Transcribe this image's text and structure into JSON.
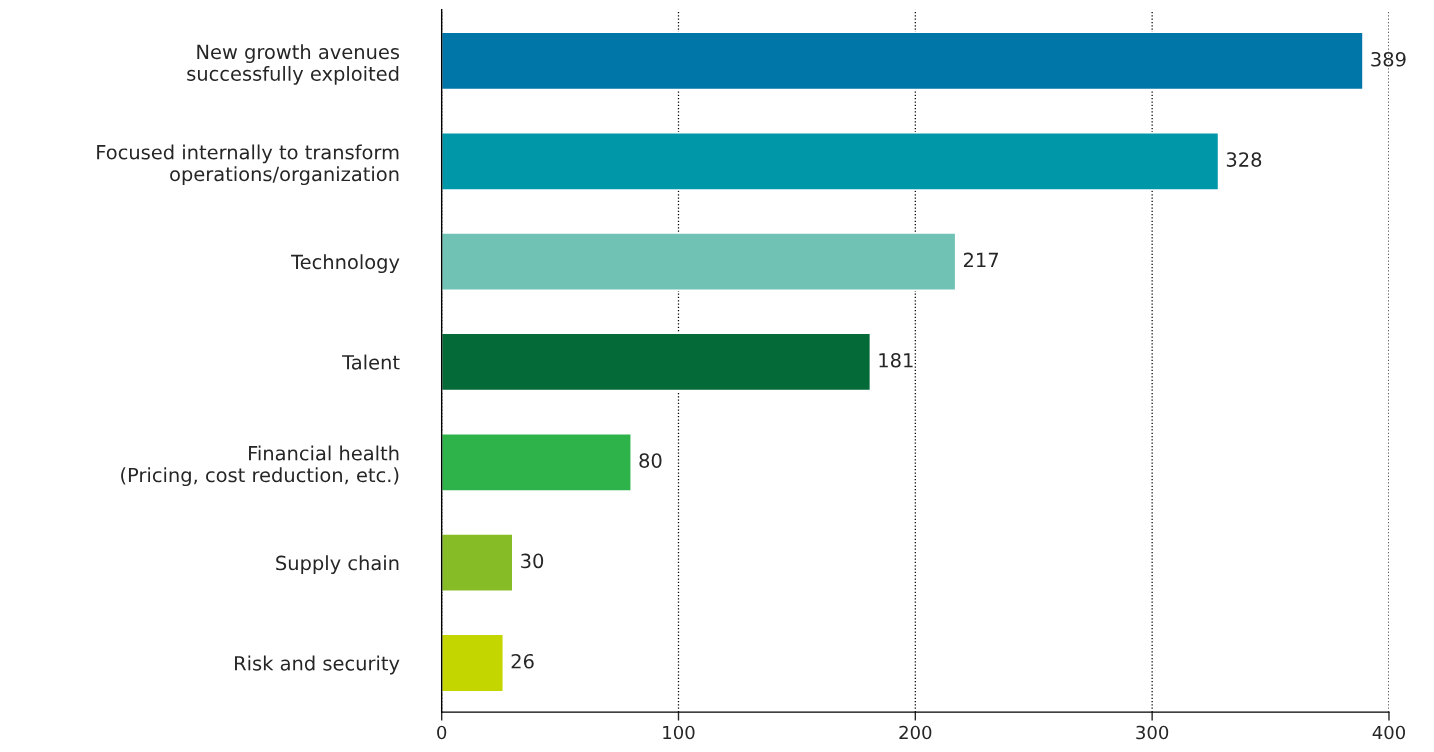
{
  "chart_data": {
    "type": "bar",
    "orientation": "horizontal",
    "categories": [
      "New growth avenues\nsuccessfully exploited",
      "Focused internally to transform\noperations/organization",
      "Technology",
      "Talent",
      "Financial health\n(Pricing, cost reduction, etc.)",
      "Supply chain",
      "Risk and security"
    ],
    "values": [
      389,
      328,
      217,
      181,
      80,
      30,
      26
    ],
    "colors": [
      "#0076a8",
      "#0097a9",
      "#6fc2b4",
      "#046a38",
      "#2eb24a",
      "#86bc25",
      "#c4d600"
    ],
    "xlim": [
      0,
      400
    ],
    "xticks": [
      0,
      100,
      200,
      300,
      400
    ],
    "grid": "x",
    "line_style": "dotted",
    "data_labels": true
  }
}
